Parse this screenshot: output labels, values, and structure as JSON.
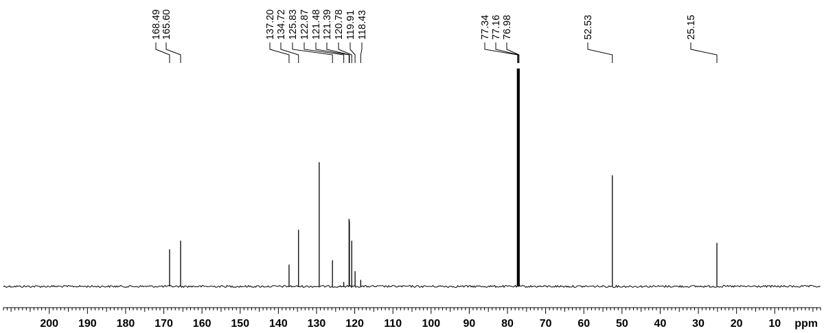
{
  "chart_data": {
    "type": "line",
    "title": "",
    "xlabel": "",
    "ylabel": "",
    "x_unit": "ppm",
    "x_axis_reversed": true,
    "xlim": [
      212,
      -2
    ],
    "x_tick_labels": [
      200,
      190,
      180,
      170,
      160,
      150,
      140,
      130,
      120,
      110,
      100,
      90,
      80,
      70,
      60,
      50,
      40,
      30,
      20,
      10
    ],
    "x_minor_tick_step": 1,
    "y_range": [
      0,
      1
    ],
    "y_axis_visible": false,
    "grid": false,
    "line_color": "#000000",
    "peak_labels": [
      "168.49",
      "165.60",
      "137.20",
      "134.72",
      "125.83",
      "122.87",
      "121.48",
      "121.39",
      "120.78",
      "119.91",
      "118.43",
      "77.34",
      "77.16",
      "76.98",
      "52.53",
      "25.15"
    ],
    "peaks": [
      {
        "x": 168.49,
        "y": 0.17
      },
      {
        "x": 165.6,
        "y": 0.21
      },
      {
        "x": 137.2,
        "y": 0.1
      },
      {
        "x": 134.72,
        "y": 0.26
      },
      {
        "x": 129.3,
        "y": 0.57
      },
      {
        "x": 125.83,
        "y": 0.12
      },
      {
        "x": 122.87,
        "y": 0.02
      },
      {
        "x": 121.48,
        "y": 0.31
      },
      {
        "x": 121.39,
        "y": 0.3
      },
      {
        "x": 120.78,
        "y": 0.21
      },
      {
        "x": 119.91,
        "y": 0.07
      },
      {
        "x": 118.43,
        "y": 0.03
      },
      {
        "x": 77.34,
        "y": 1.0
      },
      {
        "x": 77.16,
        "y": 1.0
      },
      {
        "x": 76.98,
        "y": 1.0
      },
      {
        "x": 52.53,
        "y": 0.51
      },
      {
        "x": 25.15,
        "y": 0.2
      }
    ]
  }
}
